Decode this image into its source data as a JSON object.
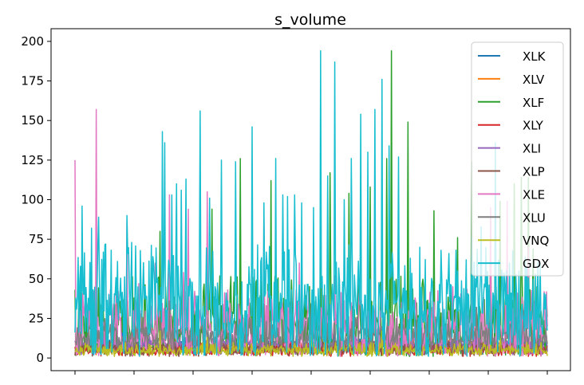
{
  "chart_data": {
    "type": "line",
    "title": "s_volume",
    "xlabel": "",
    "ylabel": "",
    "x_range": [
      0,
      200
    ],
    "ylim": [
      -8,
      208
    ],
    "y_ticks": [
      0,
      25,
      50,
      75,
      100,
      125,
      150,
      175,
      200
    ],
    "x_tick_count": 9,
    "x_tick_labels_visible": false,
    "grid": false,
    "legend_position": "top-right",
    "series": [
      {
        "name": "XLK",
        "color": "#1f77b4",
        "base": 8,
        "amp": 5,
        "peaks": [
          [
            20,
            22
          ],
          [
            110,
            25
          ],
          [
            170,
            20
          ]
        ]
      },
      {
        "name": "XLV",
        "color": "#ff7f0e",
        "base": 7,
        "amp": 5,
        "peaks": [
          [
            1,
            16
          ],
          [
            60,
            18
          ],
          [
            150,
            15
          ]
        ]
      },
      {
        "name": "XLF",
        "color": "#2ca02c",
        "base": 22,
        "amp": 30,
        "peaks": [
          [
            36,
            80
          ],
          [
            58,
            94
          ],
          [
            70,
            126
          ],
          [
            83,
            112
          ],
          [
            104,
            99
          ],
          [
            108,
            117
          ],
          [
            116,
            104
          ],
          [
            125,
            108
          ],
          [
            132,
            126
          ],
          [
            141,
            149
          ],
          [
            152,
            93
          ],
          [
            162,
            76
          ],
          [
            168,
            124
          ],
          [
            176,
            89
          ],
          [
            180,
            99
          ],
          [
            186,
            110
          ],
          [
            189,
            114
          ],
          [
            192,
            114
          ],
          [
            194,
            69
          ],
          [
            134,
            194
          ]
        ]
      },
      {
        "name": "XLY",
        "color": "#d62728",
        "base": 5,
        "amp": 5,
        "peaks": [
          [
            40,
            12
          ],
          [
            75,
            16
          ],
          [
            95,
            10
          ],
          [
            150,
            18
          ],
          [
            180,
            8
          ]
        ]
      },
      {
        "name": "XLI",
        "color": "#9467bd",
        "base": 8,
        "amp": 6,
        "peaks": [
          [
            30,
            14
          ],
          [
            90,
            18
          ],
          [
            140,
            16
          ]
        ]
      },
      {
        "name": "XLP",
        "color": "#8c564b",
        "base": 6,
        "amp": 5,
        "peaks": [
          [
            50,
            12
          ],
          [
            70,
            14
          ],
          [
            120,
            13
          ]
        ]
      },
      {
        "name": "XLE",
        "color": "#e377c2",
        "base": 18,
        "amp": 26,
        "peaks": [
          [
            0,
            125
          ],
          [
            9,
            157
          ],
          [
            22,
            86
          ],
          [
            27,
            47
          ],
          [
            34,
            60
          ],
          [
            40,
            103
          ],
          [
            46,
            54
          ],
          [
            48,
            94
          ],
          [
            56,
            105
          ],
          [
            80,
            88
          ],
          [
            95,
            60
          ],
          [
            110,
            52
          ],
          [
            130,
            55
          ],
          [
            160,
            45
          ],
          [
            176,
            95
          ],
          [
            183,
            99
          ],
          [
            192,
            70
          ]
        ]
      },
      {
        "name": "XLU",
        "color": "#7f7f7f",
        "base": 14,
        "amp": 12,
        "peaks": [
          [
            40,
            36
          ],
          [
            50,
            32
          ],
          [
            60,
            37
          ],
          [
            80,
            34
          ],
          [
            100,
            34
          ],
          [
            150,
            30
          ],
          [
            170,
            32
          ],
          [
            190,
            30
          ]
        ]
      },
      {
        "name": "VNQ",
        "color": "#bcbd22",
        "base": 5,
        "amp": 5,
        "peaks": [
          [
            36,
            17
          ],
          [
            56,
            13
          ],
          [
            70,
            14
          ],
          [
            100,
            14
          ],
          [
            130,
            17
          ],
          [
            180,
            13
          ]
        ]
      },
      {
        "name": "GDX",
        "color": "#17becf",
        "base": 30,
        "amp": 42,
        "peaks": [
          [
            3,
            96
          ],
          [
            7,
            82
          ],
          [
            10,
            89
          ],
          [
            13,
            72
          ],
          [
            18,
            61
          ],
          [
            22,
            90
          ],
          [
            24,
            73
          ],
          [
            28,
            42
          ],
          [
            33,
            64
          ],
          [
            37,
            143
          ],
          [
            38,
            136
          ],
          [
            41,
            103
          ],
          [
            43,
            110
          ],
          [
            45,
            106
          ],
          [
            47,
            113
          ],
          [
            53,
            156
          ],
          [
            57,
            101
          ],
          [
            62,
            125
          ],
          [
            68,
            124
          ],
          [
            75,
            146
          ],
          [
            80,
            98
          ],
          [
            85,
            126
          ],
          [
            88,
            103
          ],
          [
            90,
            102
          ],
          [
            93,
            103
          ],
          [
            96,
            98
          ],
          [
            101,
            95
          ],
          [
            104,
            194
          ],
          [
            107,
            115
          ],
          [
            110,
            187
          ],
          [
            114,
            100
          ],
          [
            117,
            126
          ],
          [
            121,
            154
          ],
          [
            124,
            130
          ],
          [
            127,
            157
          ],
          [
            130,
            176
          ],
          [
            133,
            134
          ],
          [
            137,
            127
          ],
          [
            142,
            63
          ],
          [
            146,
            70
          ],
          [
            155,
            68
          ],
          [
            162,
            55
          ],
          [
            168,
            77
          ],
          [
            172,
            83
          ],
          [
            174,
            70
          ],
          [
            178,
            136
          ],
          [
            184,
            60
          ],
          [
            188,
            55
          ],
          [
            195,
            53
          ]
        ]
      }
    ]
  }
}
